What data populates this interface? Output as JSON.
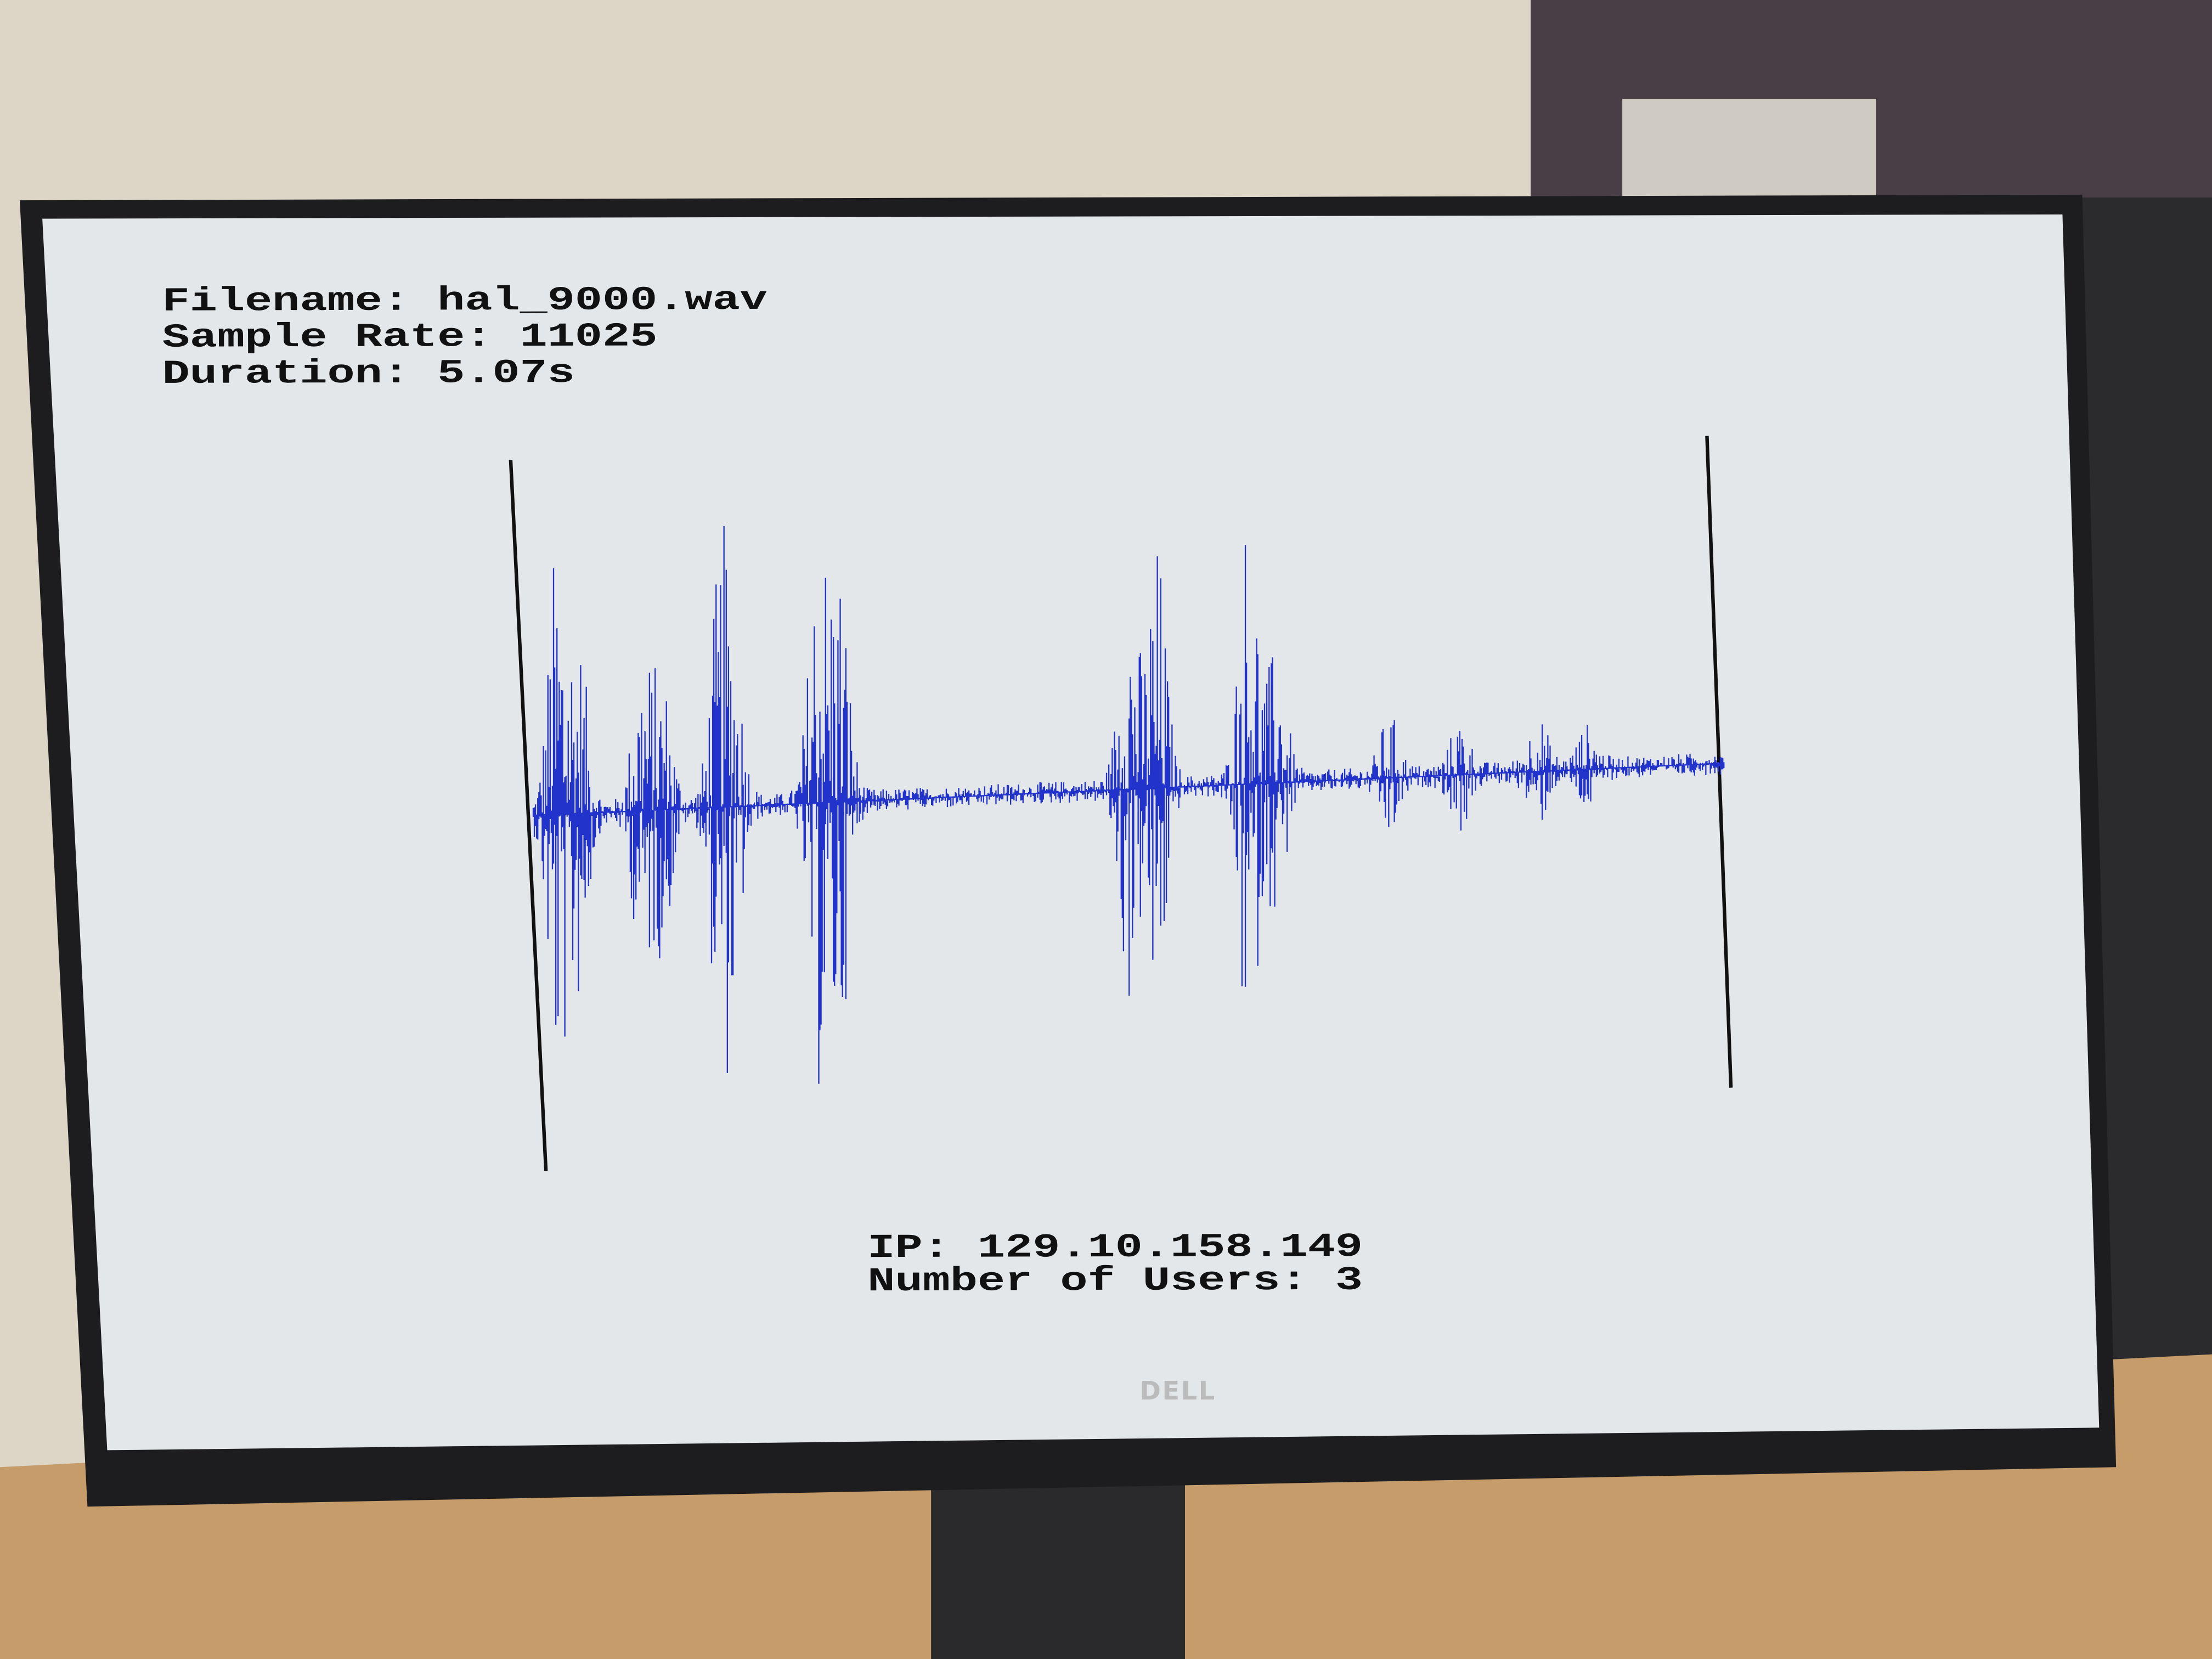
{
  "header": {
    "lines": [
      "Filename: hal_9000.wav",
      "Sample Rate: 11025",
      "Duration: 5.07s"
    ]
  },
  "footer": {
    "lines": [
      "IP: 129.10.158.149",
      "Number of Users: 3"
    ]
  },
  "monitor": {
    "brand": "DELL"
  }
}
